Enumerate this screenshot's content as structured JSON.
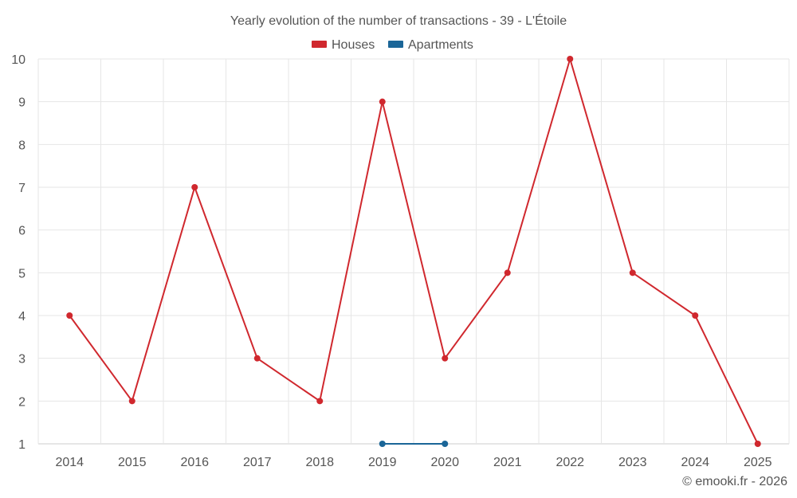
{
  "chart_data": {
    "type": "line",
    "title": "Yearly evolution of the number of transactions - 39 - L'Étoile",
    "categories": [
      "2014",
      "2015",
      "2016",
      "2017",
      "2018",
      "2019",
      "2020",
      "2021",
      "2022",
      "2023",
      "2024",
      "2025"
    ],
    "series": [
      {
        "name": "Houses",
        "color": "#d0282e",
        "values": [
          4,
          2,
          7,
          3,
          2,
          9,
          3,
          5,
          10,
          5,
          4,
          1
        ]
      },
      {
        "name": "Apartments",
        "color": "#1b6698",
        "values": [
          null,
          null,
          null,
          null,
          null,
          1,
          1,
          null,
          null,
          null,
          null,
          null
        ]
      }
    ],
    "ylim": [
      1,
      10
    ],
    "yticks": [
      1,
      2,
      3,
      4,
      5,
      6,
      7,
      8,
      9,
      10
    ],
    "grid": true,
    "legend": "top-center",
    "xlabel": "",
    "ylabel": ""
  },
  "credit": "© emooki.fr - 2026",
  "colors": {
    "grid": "#e6e6e6",
    "axis": "#cccccc",
    "text": "#555555"
  }
}
